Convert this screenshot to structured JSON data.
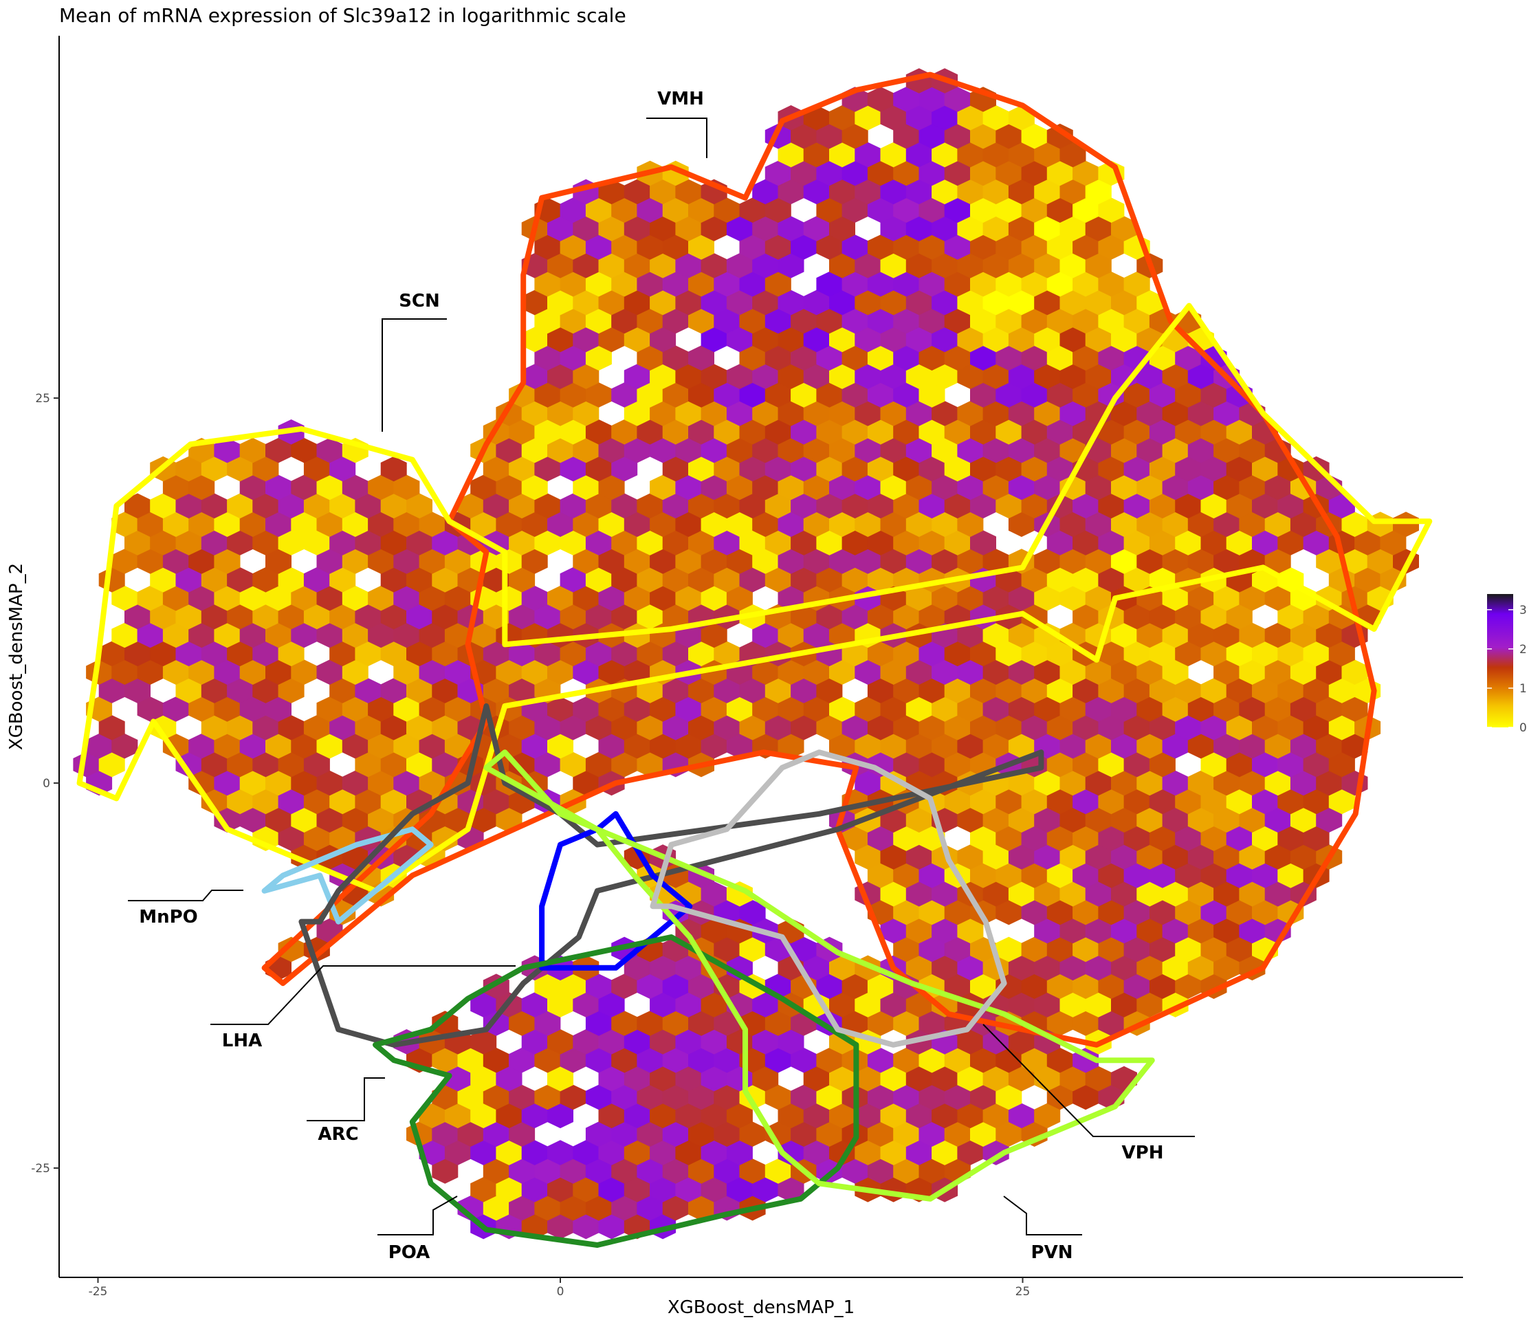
{
  "chart_data": {
    "type": "heatmap",
    "subtype": "hexbin",
    "title": "Mean of mRNA expression of Slc39a12 in logarithmic scale",
    "xlabel": "XGBoost_densMAP_1",
    "ylabel": "XGBoost_densMAP_2",
    "xlim": [
      -27,
      48
    ],
    "ylim": [
      -32,
      48
    ],
    "x_ticks": [
      -25,
      0,
      25
    ],
    "y_ticks": [
      -25,
      0,
      25
    ],
    "x_tick_labels": [
      "-25",
      "0",
      "25"
    ],
    "y_tick_labels": [
      "-25",
      "0",
      "25"
    ],
    "grid": false,
    "legend": {
      "position": "right",
      "title": "",
      "ticks": [
        0,
        1,
        2,
        3
      ],
      "tick_labels": [
        "0",
        "1",
        "2",
        "3"
      ],
      "range": [
        0,
        3.4
      ],
      "colors": [
        "#ffff00",
        "#e59a00",
        "#c0360a",
        "#a21ec8",
        "#7000f0",
        "#1a1a1a"
      ]
    },
    "regions": [
      {
        "name": "VMH",
        "color": "#ff4500",
        "centroid": [
          20,
          20
        ]
      },
      {
        "name": "SCN",
        "color": "#ffff00",
        "centroid": [
          -16,
          11
        ]
      },
      {
        "name": "MnPO",
        "color": "#87ceeb",
        "centroid": [
          -10,
          -5
        ]
      },
      {
        "name": "LHA",
        "color": "#4d4d4d",
        "centroid": [
          -3,
          -8
        ]
      },
      {
        "name": "ARC",
        "color": "#0000ff",
        "centroid": [
          3,
          -6
        ]
      },
      {
        "name": "POA",
        "color": "#228b22",
        "centroid": [
          2,
          -18
        ]
      },
      {
        "name": "PVN",
        "color": "#adff2f",
        "centroid": [
          15,
          -15
        ]
      },
      {
        "name": "VPH",
        "color": "#bebebe",
        "centroid": [
          16,
          -6
        ]
      }
    ]
  }
}
